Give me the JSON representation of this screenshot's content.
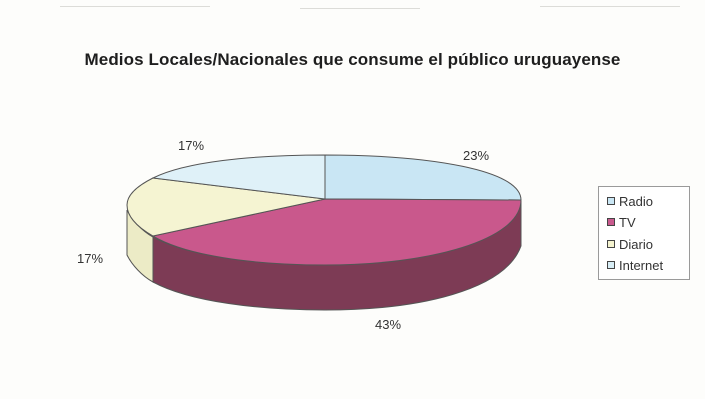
{
  "chart_data": {
    "type": "pie",
    "title": "Medios Locales/Nacionales que consume el público uruguayense",
    "series": [
      {
        "values": [
          23,
          43,
          17,
          17
        ],
        "labels": [
          "23%",
          "43%",
          "17%",
          "17%"
        ]
      }
    ],
    "categories": [
      "Radio",
      "TV",
      "Diario",
      "Internet"
    ],
    "legend": {
      "position": "right",
      "entries": [
        "Radio",
        "TV",
        "Diario",
        "Internet"
      ]
    },
    "colors": {
      "Radio": "#c9e6f4",
      "TV": "#c95a8e",
      "Diario": "#f4f3cf",
      "Internet": "#d8eef6",
      "TV_side": "#7a3b53",
      "Diario_side": "#e9e8c0"
    },
    "style": "3d"
  }
}
